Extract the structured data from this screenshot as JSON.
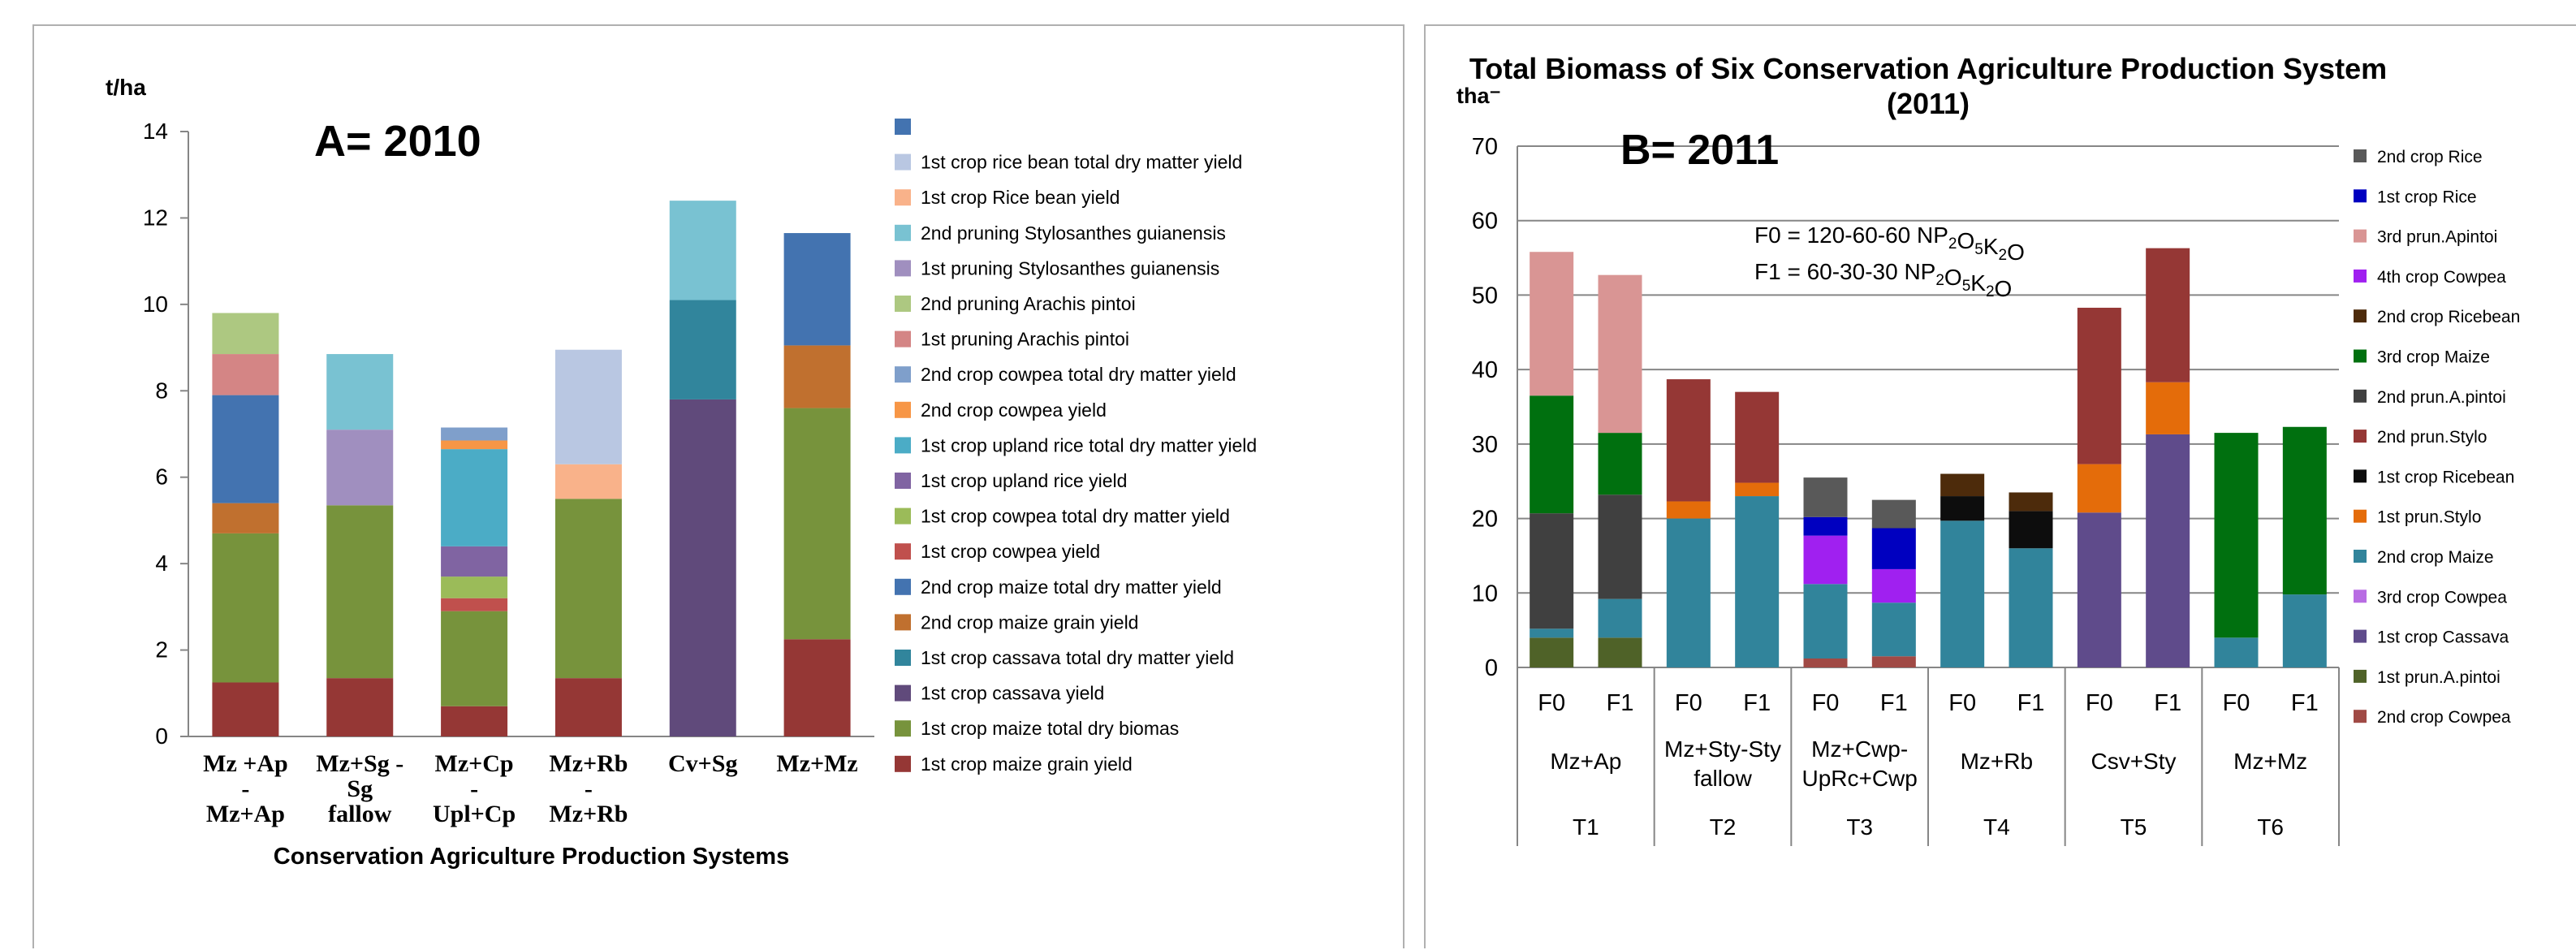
{
  "chart_data": [
    {
      "panel": "A",
      "type": "bar",
      "stacked": true,
      "label": "A= 2010",
      "ylabel": "t/ha",
      "xlabel": "Conservation Agriculture Production Systems",
      "ylim": [
        0,
        14
      ],
      "yticks": [
        0,
        2,
        4,
        6,
        8,
        10,
        12,
        14
      ],
      "grid": false,
      "legend_position": "right",
      "categories": [
        [
          "Mz +Ap",
          "-",
          "Mz+Ap"
        ],
        [
          "Mz+Sg -",
          "Sg",
          "fallow"
        ],
        [
          "Mz+Cp",
          "-",
          "Upl+Cp"
        ],
        [
          "Mz+Rb",
          "-",
          "Mz+Rb"
        ],
        [
          "Cv+Sg"
        ],
        [
          "Mz+Mz"
        ]
      ],
      "series": [
        {
          "name": "1st crop maize grain yield",
          "color": "#953735",
          "values": [
            1.25,
            1.35,
            0.7,
            1.35,
            0,
            2.25
          ]
        },
        {
          "name": "1st crop maize total dry biomas",
          "color": "#77933c",
          "values": [
            3.45,
            4.0,
            2.2,
            4.15,
            0,
            5.35
          ]
        },
        {
          "name": "1st crop cassava yield",
          "color": "#604a7b",
          "values": [
            0,
            0,
            0,
            0,
            7.8,
            0
          ]
        },
        {
          "name": "1st crop cassava total dry matter yield",
          "color": "#31859c",
          "values": [
            0,
            0,
            0,
            0,
            2.3,
            0
          ]
        },
        {
          "name": "2nd crop maize grain yield",
          "color": "#c0702f",
          "values": [
            0.7,
            0,
            0,
            0,
            0,
            1.45
          ]
        },
        {
          "name": "2nd crop maize total dry matter yield",
          "color": "#4373b0",
          "values": [
            2.5,
            0,
            0,
            0,
            0,
            2.6
          ]
        },
        {
          "name": "1st crop cowpea yield",
          "color": "#c0504d",
          "values": [
            0,
            0,
            0.3,
            0,
            0,
            0
          ]
        },
        {
          "name": "1st crop cowpea total dry matter yield",
          "color": "#9bbb59",
          "values": [
            0,
            0,
            0.5,
            0,
            0,
            0
          ]
        },
        {
          "name": "1st crop upland rice yield",
          "color": "#8064a2",
          "values": [
            0,
            0,
            0.7,
            0,
            0,
            0
          ]
        },
        {
          "name": "1st crop upland rice total dry matter yield",
          "color": "#4bacc6",
          "values": [
            0,
            0,
            2.25,
            0,
            0,
            0
          ]
        },
        {
          "name": "2nd crop cowpea yield",
          "color": "#f79646",
          "values": [
            0,
            0,
            0.2,
            0,
            0,
            0
          ]
        },
        {
          "name": "2nd crop cowpea total dry matter yield",
          "color": "#7f9fcb",
          "values": [
            0,
            0,
            0.3,
            0,
            0,
            0
          ]
        },
        {
          "name": "1st pruning Arachis pintoi",
          "color": "#d48585",
          "values": [
            0.95,
            0,
            0,
            0,
            0,
            0
          ]
        },
        {
          "name": "2nd pruning Arachis pintoi",
          "color": "#adc881",
          "values": [
            0.95,
            0,
            0,
            0,
            0,
            0
          ]
        },
        {
          "name": "1st pruning Stylosanthes guianensis",
          "color": "#a08fbf",
          "values": [
            0,
            1.75,
            0,
            0,
            0,
            0
          ]
        },
        {
          "name": "2nd pruning Stylosanthes guianensis",
          "color": "#79c2d2",
          "values": [
            0,
            1.75,
            0,
            0,
            2.3,
            0
          ]
        },
        {
          "name": "1st crop Rice bean yield",
          "color": "#f9b28a",
          "values": [
            0,
            0,
            0,
            0.8,
            0,
            0
          ]
        },
        {
          "name": "1st crop rice bean total dry matter yield",
          "color": "#b9c7e2",
          "values": [
            0,
            0,
            0,
            2.65,
            0,
            0
          ]
        },
        {
          "name": "",
          "color": "#4373b0",
          "values": [
            0,
            0,
            0,
            0,
            0,
            0
          ]
        }
      ]
    },
    {
      "panel": "B",
      "type": "bar",
      "stacked": true,
      "label": "B= 2011",
      "title": "Total Biomass of Six Conservation Agriculture Production System",
      "title_line2": "(2011)",
      "ylabel": "tha⁻",
      "ylim": [
        0,
        70
      ],
      "yticks": [
        0,
        10,
        20,
        30,
        40,
        50,
        60,
        70
      ],
      "grid": true,
      "legend_position": "right",
      "annotations": [
        {
          "segments": [
            [
              "F0 = 120-60-60 NP",
              ""
            ],
            [
              "2",
              "sub"
            ],
            [
              "O",
              ""
            ],
            [
              "5",
              "sub"
            ],
            [
              "K",
              ""
            ],
            [
              "2",
              "sub"
            ],
            [
              "O",
              ""
            ]
          ]
        },
        {
          "segments": [
            [
              "F1 = 60-30-30 NP",
              ""
            ],
            [
              "2",
              "sub"
            ],
            [
              "O",
              ""
            ],
            [
              "5",
              "sub"
            ],
            [
              "K",
              ""
            ],
            [
              "2",
              "sub"
            ],
            [
              "O",
              ""
            ]
          ]
        }
      ],
      "categories": [
        "F0",
        "F1",
        "F0",
        "F1",
        "F0",
        "F1",
        "F0",
        "F1",
        "F0",
        "F1",
        "F0",
        "F1"
      ],
      "groups": [
        {
          "label": [
            "Mz+Ap"
          ],
          "treatment": "T1"
        },
        {
          "label": [
            "Mz+Sty-Sty",
            "fallow"
          ],
          "treatment": "T2"
        },
        {
          "label": [
            "Mz+Cwp-",
            "UpRc+Cwp"
          ],
          "treatment": "T3"
        },
        {
          "label": [
            "Mz+Rb"
          ],
          "treatment": "T4"
        },
        {
          "label": [
            "Csv+Sty"
          ],
          "treatment": "T5"
        },
        {
          "label": [
            "Mz+Mz"
          ],
          "treatment": "T6"
        }
      ],
      "series": [
        {
          "name": "2nd crop Cowpea",
          "color": "#a04a45",
          "values": [
            0,
            0,
            0,
            0,
            1.2,
            1.5,
            0,
            0,
            0,
            0,
            0,
            0
          ]
        },
        {
          "name": "1st prun.A.pintoi",
          "color": "#4f6228",
          "values": [
            4,
            4,
            0,
            0,
            0,
            0,
            0,
            0,
            0,
            0,
            0,
            0
          ]
        },
        {
          "name": "1st crop Cassava",
          "color": "#5f4b8b",
          "values": [
            0,
            0,
            0,
            0,
            0,
            0,
            0,
            0,
            20.8,
            31.3,
            0,
            0
          ]
        },
        {
          "name": "3rd crop Cowpea",
          "color": "#b86ce3",
          "values": [
            0,
            0,
            0,
            0,
            0,
            0,
            0,
            0,
            0,
            0,
            0,
            0
          ]
        },
        {
          "name": "2nd crop Maize",
          "color": "#31849b",
          "values": [
            1.2,
            5.2,
            20,
            23,
            10,
            7.2,
            19.7,
            16,
            0,
            0,
            4,
            9.8
          ]
        },
        {
          "name": "1st prun.Stylo",
          "color": "#e46c0a",
          "values": [
            0,
            0,
            2.3,
            1.8,
            0,
            0,
            0,
            0,
            6.5,
            7,
            0,
            0
          ]
        },
        {
          "name": "1st crop Ricebean",
          "color": "#0d0d0d",
          "values": [
            0,
            0,
            0,
            0,
            0,
            0,
            3.3,
            5,
            0,
            0,
            0,
            0
          ]
        },
        {
          "name": "2nd prun.Stylo",
          "color": "#953735",
          "values": [
            0,
            0,
            16.4,
            12.2,
            0,
            0,
            0,
            0,
            21,
            18,
            0,
            0
          ]
        },
        {
          "name": "2nd prun.A.pintoi",
          "color": "#404040",
          "values": [
            15.5,
            14,
            0,
            0,
            0,
            0,
            0,
            0,
            0,
            0,
            0,
            0
          ]
        },
        {
          "name": "3rd crop Maize",
          "color": "#00700f",
          "values": [
            15.8,
            8.3,
            0,
            0,
            0,
            0,
            0,
            0,
            0,
            0,
            27.5,
            22.5
          ]
        },
        {
          "name": "2nd crop Ricebean",
          "color": "#4d2b0b",
          "values": [
            0,
            0,
            0,
            0,
            0,
            0,
            3,
            2.5,
            0,
            0,
            0,
            0
          ]
        },
        {
          "name": "4th crop Cowpea",
          "color": "#a020f0",
          "values": [
            0,
            0,
            0,
            0,
            6.5,
            4.5,
            0,
            0,
            0,
            0,
            0,
            0
          ]
        },
        {
          "name": "3rd prun.Apintoi",
          "color": "#d99594",
          "values": [
            19.3,
            21.2,
            0,
            0,
            0,
            0,
            0,
            0,
            0,
            0,
            0,
            0
          ]
        },
        {
          "name": "1st crop Rice",
          "color": "#0000c0",
          "values": [
            0,
            0,
            0,
            0,
            2.5,
            5.5,
            0,
            0,
            0,
            0,
            0,
            0
          ]
        },
        {
          "name": "2nd crop Rice",
          "color": "#595959",
          "values": [
            0,
            0,
            0,
            0,
            5.3,
            3.8,
            0,
            0,
            0,
            0,
            0,
            0
          ]
        }
      ]
    }
  ]
}
